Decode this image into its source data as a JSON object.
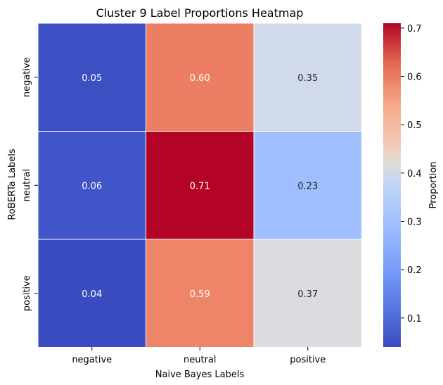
{
  "chart_data": {
    "type": "heatmap",
    "title": "Cluster 9 Label Proportions Heatmap",
    "xlabel": "Naive Bayes Labels",
    "ylabel": "RoBERTa Labels",
    "x_categories": [
      "negative",
      "neutral",
      "positive"
    ],
    "y_categories": [
      "negative",
      "neutral",
      "positive"
    ],
    "values": [
      [
        0.05,
        0.6,
        0.35
      ],
      [
        0.06,
        0.71,
        0.23
      ],
      [
        0.04,
        0.59,
        0.37
      ]
    ],
    "annotations": [
      [
        "0.05",
        "0.60",
        "0.35"
      ],
      [
        "0.06",
        "0.71",
        "0.23"
      ],
      [
        "0.04",
        "0.59",
        "0.37"
      ]
    ],
    "colormap": "coolwarm",
    "colorbar": {
      "label": "Proportion",
      "vmin": 0.04,
      "vmax": 0.71,
      "ticks": [
        0.1,
        0.2,
        0.3,
        0.4,
        0.5,
        0.6,
        0.7
      ],
      "tick_labels": [
        "0.1",
        "0.2",
        "0.3",
        "0.4",
        "0.5",
        "0.6",
        "0.7"
      ]
    },
    "colors": {
      "0.04": "#3b4cc0",
      "0.05": "#3d50c3",
      "0.06": "#4055c8",
      "0.23": "#9fbfff",
      "0.35": "#d1dae9",
      "0.37": "#dadce0",
      "0.59": "#ee8468",
      "0.60": "#ec7f63",
      "0.71": "#b40426"
    }
  }
}
